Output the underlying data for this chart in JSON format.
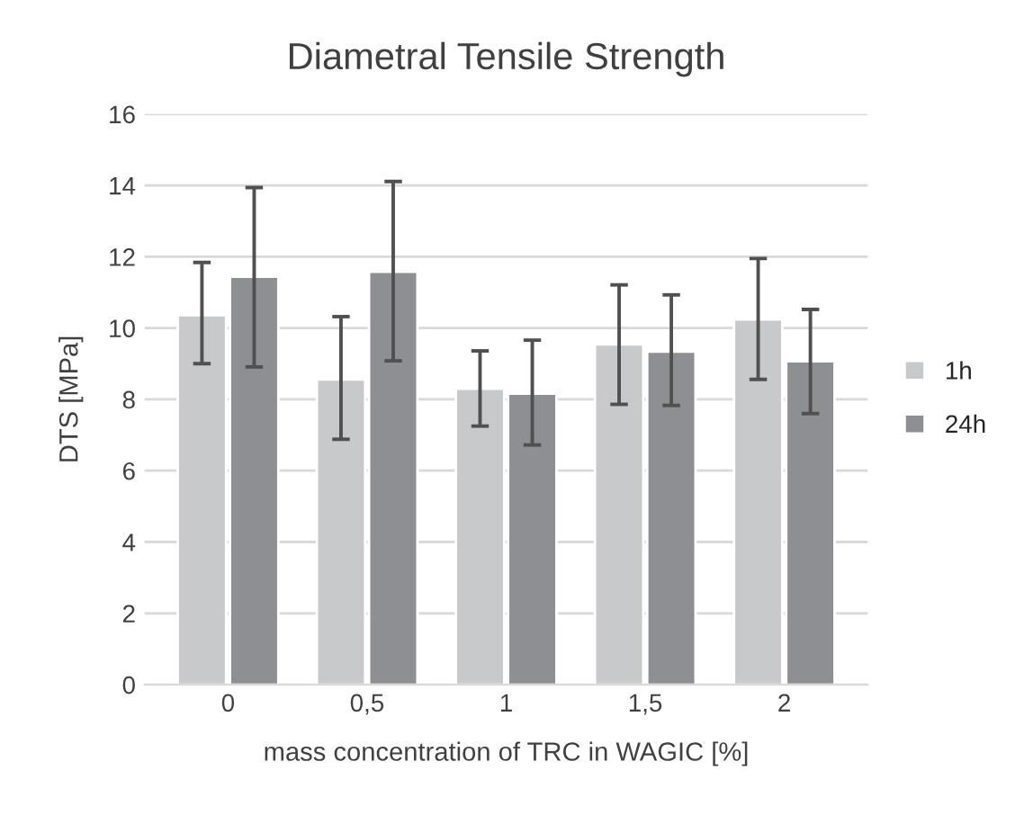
{
  "chart_data": {
    "type": "bar",
    "title": "Diametral Tensile Strength",
    "xlabel": "mass concentration of TRC in WAGIC [%]",
    "ylabel": "DTS [MPa]",
    "categories": [
      "0",
      "0,5",
      "1",
      "1,5",
      "2"
    ],
    "series": [
      {
        "name": "1h",
        "color": "#c8c9cb",
        "values": [
          10.36,
          8.56,
          8.3,
          9.54,
          10.24
        ],
        "errors": [
          [
            9.0,
            11.84
          ],
          [
            6.88,
            10.32
          ],
          [
            7.25,
            9.36
          ],
          [
            7.86,
            11.21
          ],
          [
            8.56,
            11.95
          ]
        ]
      },
      {
        "name": "24h",
        "color": "#8e8f92",
        "values": [
          11.44,
          11.58,
          8.16,
          9.34,
          9.07
        ],
        "errors": [
          [
            8.91,
            13.94
          ],
          [
            9.08,
            14.11
          ],
          [
            6.72,
            9.66
          ],
          [
            7.83,
            10.93
          ],
          [
            7.6,
            10.52
          ]
        ]
      }
    ],
    "ylim": [
      0,
      16
    ],
    "yticks": [
      0,
      2,
      4,
      6,
      8,
      10,
      12,
      14,
      16
    ],
    "grid": "y",
    "legend": "right"
  }
}
